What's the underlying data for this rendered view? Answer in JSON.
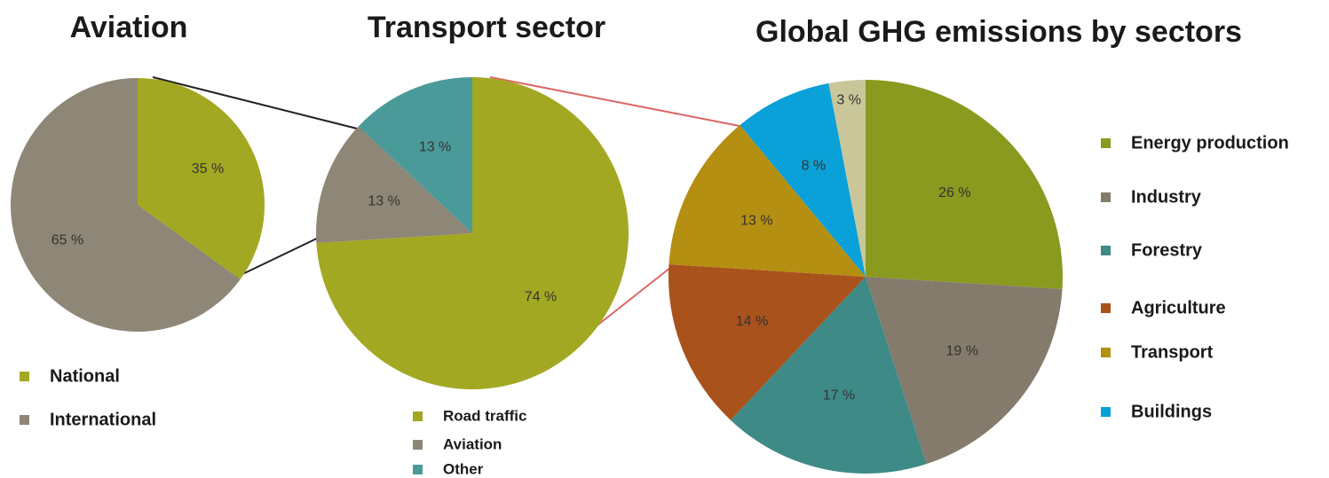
{
  "chart_data": [
    {
      "type": "pie",
      "title": "Aviation",
      "categories": [
        "National",
        "International"
      ],
      "values": [
        35,
        65
      ],
      "value_labels": [
        "35 %",
        "65 %"
      ],
      "colors": [
        "#a3a822",
        "#8e8676"
      ]
    },
    {
      "type": "pie",
      "title": "Transport sector",
      "categories": [
        "Road traffic",
        "Aviation",
        "Other"
      ],
      "values": [
        74,
        13,
        13
      ],
      "value_labels": [
        "74 %",
        "13 %",
        "13 %"
      ],
      "colors": [
        "#a3a822",
        "#8e8676",
        "#4b9a9a"
      ]
    },
    {
      "type": "pie",
      "title": "Global GHG emissions by sectors",
      "categories": [
        "Energy production",
        "Industry",
        "Forestry",
        "Agriculture",
        "Transport",
        "Buildings",
        null
      ],
      "values": [
        26,
        19,
        17,
        14,
        13,
        8,
        3
      ],
      "value_labels": [
        "26 %",
        "19 %",
        "17 %",
        "14 %",
        "13 %",
        "8 %",
        "3 %"
      ],
      "colors": [
        "#8a9a1e",
        "#857b6c",
        "#3e8a87",
        "#a9521c",
        "#b48f12",
        "#0aa0d8",
        "#c9c79a"
      ]
    }
  ]
}
